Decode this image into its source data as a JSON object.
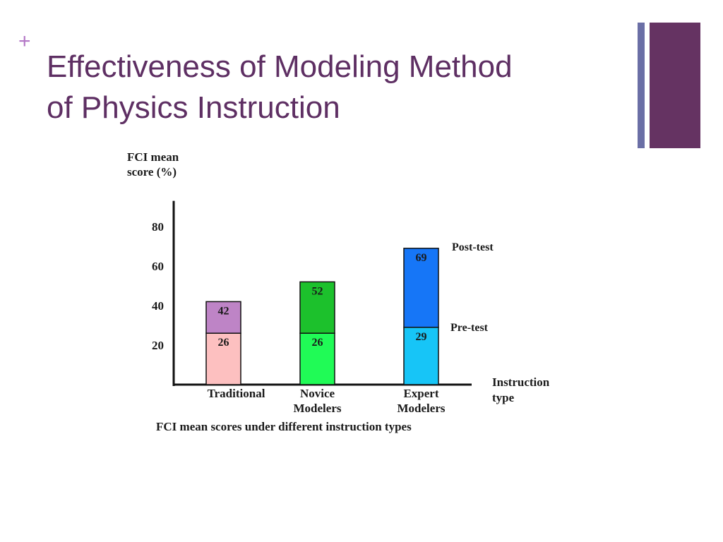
{
  "slide": {
    "bullet_symbol": "+",
    "title_line1": "Effectiveness of Modeling Method",
    "title_line2": "of Physics Instruction"
  },
  "colors": {
    "title": "#5e2f63",
    "bullet": "#b377c6",
    "accent_thin": "#6b6fa6",
    "accent_thick": "#653362"
  },
  "chart_data": {
    "type": "bar",
    "stacked": true,
    "categories": [
      "Traditional",
      "Novice Modelers",
      "Expert Modelers"
    ],
    "category_lines": [
      [
        "Traditional"
      ],
      [
        "Novice",
        "Modelers"
      ],
      [
        "Expert",
        "Modelers"
      ]
    ],
    "series": [
      {
        "name": "Pre-test",
        "values": [
          26,
          26,
          29
        ],
        "colors": [
          "#fdc0c0",
          "#20fb56",
          "#17c5f7"
        ]
      },
      {
        "name": "Post-test",
        "values": [
          42,
          52,
          69
        ],
        "colors": [
          "#be84c6",
          "#1cc12c",
          "#1676f7"
        ]
      }
    ],
    "ylabel_lines": [
      "FCI mean",
      "score (%)"
    ],
    "xlabel_lines": [
      "Instruction",
      "type"
    ],
    "caption": "FCI mean scores under different instruction types",
    "yticks": [
      20,
      40,
      60,
      80
    ],
    "ylim": [
      0,
      93
    ],
    "grid": false,
    "legend": "inline labels at right of last bar"
  }
}
